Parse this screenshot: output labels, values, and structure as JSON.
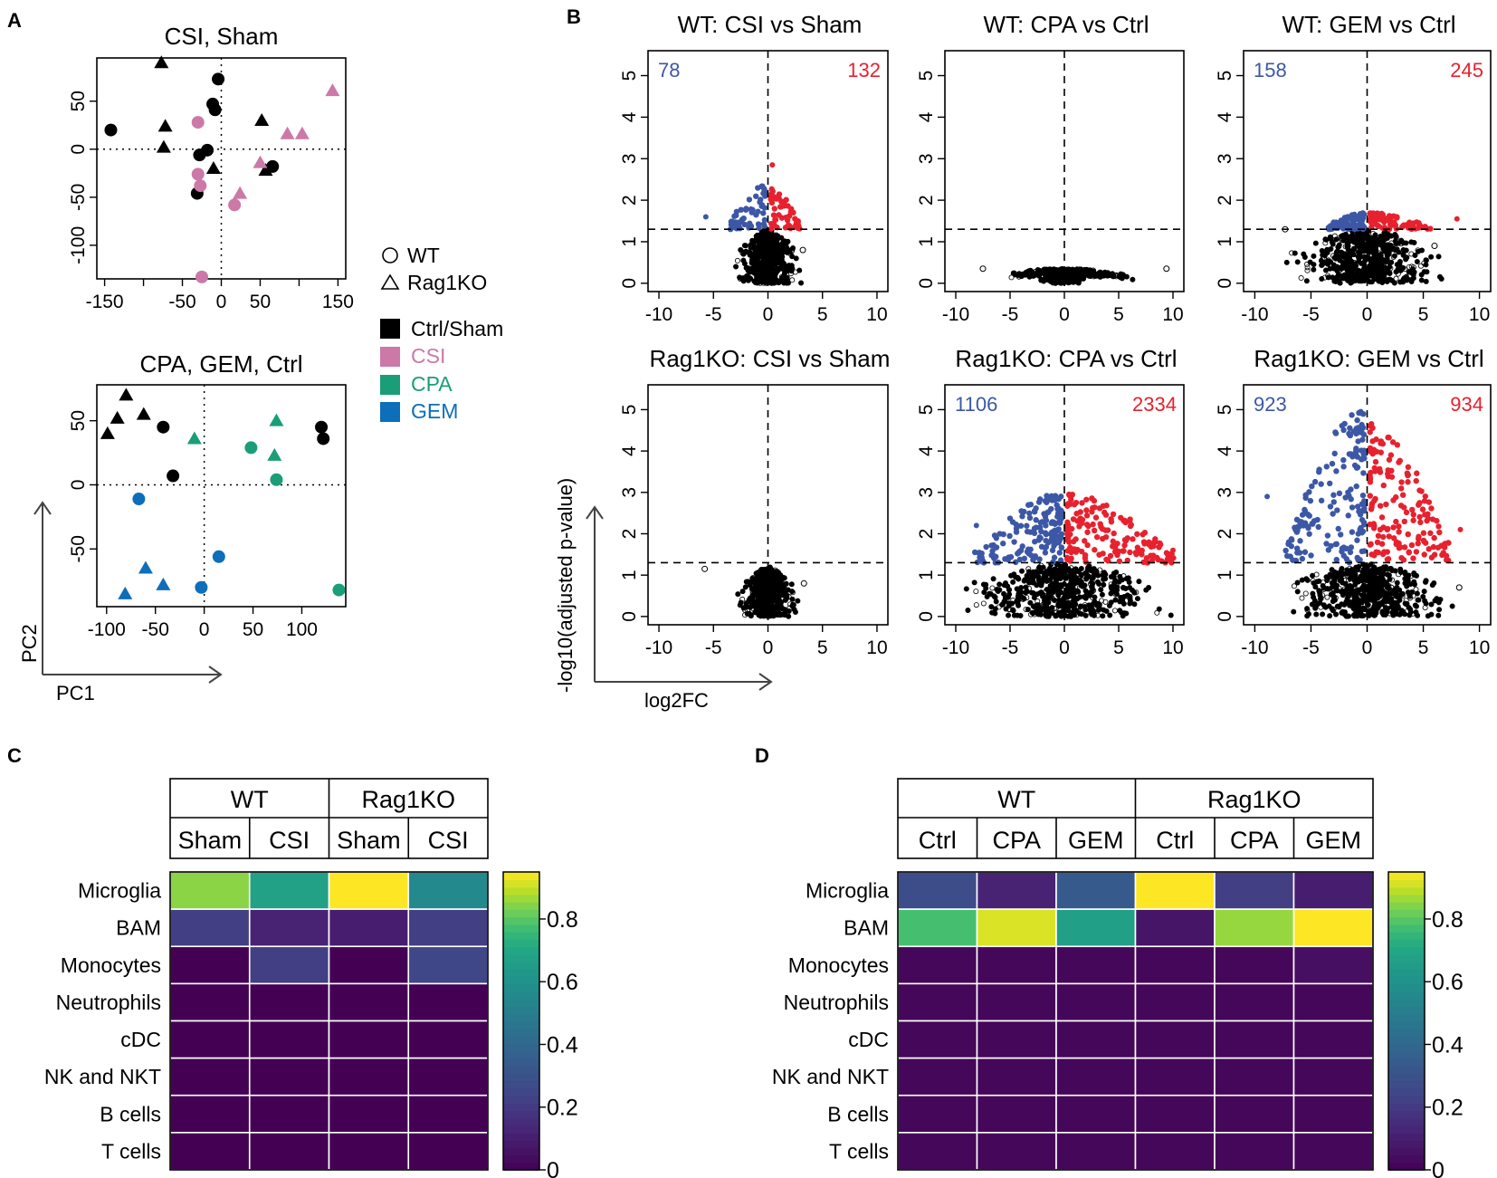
{
  "panel_labels": [
    "A",
    "B",
    "C",
    "D"
  ],
  "colors": {
    "ctrl": "#000000",
    "csi": "#cc79a7",
    "cpa": "#1a9e77",
    "gem": "#0d6eba",
    "up": "#e7212e",
    "down": "#3c57a6",
    "ns": "#000000",
    "count_down": "#3c57a6",
    "count_up": "#e7212e"
  },
  "pca_legend": {
    "shapes": [
      {
        "label": "WT",
        "shape": "circle"
      },
      {
        "label": "Rag1KO",
        "shape": "triangle"
      }
    ],
    "groups": [
      {
        "label": "Ctrl/Sham",
        "color": "#000000"
      },
      {
        "label": "CSI",
        "color": "#cc79a7"
      },
      {
        "label": "CPA",
        "color": "#1a9e77"
      },
      {
        "label": "GEM",
        "color": "#0d6eba"
      }
    ]
  },
  "pca_axes": {
    "x": "PC1",
    "y": "PC2"
  },
  "volcano_axes": {
    "x": "log2FC",
    "y": "-log10(adjusted p-value)"
  },
  "chart_data": [
    {
      "type": "scatter",
      "id": "pca_csi",
      "title": "CSI, Sham",
      "xlim": [
        -160,
        160
      ],
      "ylim": [
        -135,
        95
      ],
      "xticks": [
        -150,
        -100,
        -50,
        0,
        50,
        100,
        150
      ],
      "xtick_labels": [
        "-150",
        "",
        "-50",
        "0",
        "50",
        "",
        "150"
      ],
      "yticks": [
        -100,
        -50,
        0,
        50
      ],
      "reference_lines": {
        "x": 0,
        "y": 0
      },
      "points": [
        {
          "x": -142,
          "y": 20,
          "g": "ctrl",
          "s": "circle"
        },
        {
          "x": -77,
          "y": 90,
          "g": "ctrl",
          "s": "triangle"
        },
        {
          "x": -72,
          "y": 24,
          "g": "ctrl",
          "s": "triangle"
        },
        {
          "x": -74,
          "y": 2,
          "g": "ctrl",
          "s": "triangle"
        },
        {
          "x": -11,
          "y": 47,
          "g": "ctrl",
          "s": "circle"
        },
        {
          "x": -8,
          "y": 41,
          "g": "ctrl",
          "s": "circle"
        },
        {
          "x": -4,
          "y": 73,
          "g": "ctrl",
          "s": "circle"
        },
        {
          "x": -28,
          "y": -6,
          "g": "ctrl",
          "s": "circle"
        },
        {
          "x": -18,
          "y": -1,
          "g": "ctrl",
          "s": "circle"
        },
        {
          "x": -10,
          "y": -20,
          "g": "ctrl",
          "s": "triangle"
        },
        {
          "x": -31,
          "y": -46,
          "g": "ctrl",
          "s": "circle"
        },
        {
          "x": 52,
          "y": 30,
          "g": "ctrl",
          "s": "triangle"
        },
        {
          "x": 57,
          "y": -22,
          "g": "ctrl",
          "s": "triangle"
        },
        {
          "x": 66,
          "y": -18,
          "g": "ctrl",
          "s": "circle"
        },
        {
          "x": -30,
          "y": 28,
          "g": "csi",
          "s": "circle"
        },
        {
          "x": -30,
          "y": -26,
          "g": "csi",
          "s": "circle"
        },
        {
          "x": -27,
          "y": -38,
          "g": "csi",
          "s": "circle"
        },
        {
          "x": -25,
          "y": -133,
          "g": "csi",
          "s": "circle"
        },
        {
          "x": 17,
          "y": -58,
          "g": "csi",
          "s": "circle"
        },
        {
          "x": 24,
          "y": -46,
          "g": "csi",
          "s": "triangle"
        },
        {
          "x": 50,
          "y": -14,
          "g": "csi",
          "s": "triangle"
        },
        {
          "x": 85,
          "y": 16,
          "g": "csi",
          "s": "triangle"
        },
        {
          "x": 104,
          "y": 16,
          "g": "csi",
          "s": "triangle"
        },
        {
          "x": 143,
          "y": 61,
          "g": "csi",
          "s": "triangle"
        }
      ]
    },
    {
      "type": "scatter",
      "id": "pca_drug",
      "title": "CPA, GEM, Ctrl",
      "xlim": [
        -110,
        145
      ],
      "ylim": [
        -95,
        78
      ],
      "xticks": [
        -100,
        -50,
        0,
        50,
        100
      ],
      "xtick_labels": [
        "-100",
        "-50",
        "0",
        "50",
        "100"
      ],
      "yticks": [
        -50,
        0,
        50
      ],
      "reference_lines": {
        "x": 0,
        "y": 0
      },
      "points": [
        {
          "x": -99,
          "y": 40,
          "g": "ctrl",
          "s": "triangle"
        },
        {
          "x": -89,
          "y": 52,
          "g": "ctrl",
          "s": "triangle"
        },
        {
          "x": -80,
          "y": 70,
          "g": "ctrl",
          "s": "triangle"
        },
        {
          "x": -62,
          "y": 55,
          "g": "ctrl",
          "s": "triangle"
        },
        {
          "x": -42,
          "y": 45,
          "g": "ctrl",
          "s": "circle"
        },
        {
          "x": -32,
          "y": 7,
          "g": "ctrl",
          "s": "circle"
        },
        {
          "x": 120,
          "y": 45,
          "g": "ctrl",
          "s": "circle"
        },
        {
          "x": 122,
          "y": 36,
          "g": "ctrl",
          "s": "circle"
        },
        {
          "x": -10,
          "y": 36,
          "g": "cpa",
          "s": "triangle"
        },
        {
          "x": 48,
          "y": 29,
          "g": "cpa",
          "s": "circle"
        },
        {
          "x": 74,
          "y": 50,
          "g": "cpa",
          "s": "triangle"
        },
        {
          "x": 72,
          "y": 23,
          "g": "cpa",
          "s": "triangle"
        },
        {
          "x": 74,
          "y": 4,
          "g": "cpa",
          "s": "circle"
        },
        {
          "x": 138,
          "y": -82,
          "g": "cpa",
          "s": "circle"
        },
        {
          "x": -67,
          "y": -11,
          "g": "gem",
          "s": "circle"
        },
        {
          "x": -60,
          "y": -65,
          "g": "gem",
          "s": "triangle"
        },
        {
          "x": -81,
          "y": -85,
          "g": "gem",
          "s": "triangle"
        },
        {
          "x": -42,
          "y": -78,
          "g": "gem",
          "s": "triangle"
        },
        {
          "x": -3,
          "y": -80,
          "g": "gem",
          "s": "circle"
        },
        {
          "x": 15,
          "y": -56,
          "g": "gem",
          "s": "circle"
        }
      ]
    },
    {
      "type": "volcano",
      "id": "v_wt_csi",
      "title": "WT: CSI vs Sham",
      "n_down": "78",
      "n_up": "132",
      "xlim": [
        -11,
        11
      ],
      "ylim": [
        -0.2,
        5.6
      ],
      "xticks": [
        -10,
        -5,
        0,
        5,
        10
      ],
      "yticks": [
        0,
        1,
        2,
        3,
        4,
        5
      ],
      "threshold": 1.3,
      "sig_max": 2.3,
      "sig_max_up": 2.3,
      "sig_max_down": 2.4,
      "sig_width_up": 2.7,
      "sig_width_down": 3.3,
      "ns_width": 3.3,
      "ns_max": 1.3,
      "outliers": [
        [
          0.4,
          2.85
        ],
        [
          -5.7,
          1.6
        ],
        [
          3.2,
          0.8
        ]
      ]
    },
    {
      "type": "volcano",
      "id": "v_wt_cpa",
      "title": "WT: CPA vs Ctrl",
      "n_down": "",
      "n_up": "",
      "xlim": [
        -11,
        11
      ],
      "ylim": [
        -0.2,
        5.6
      ],
      "xticks": [
        -10,
        -5,
        0,
        5,
        10
      ],
      "yticks": [
        0,
        1,
        2,
        3,
        4,
        5
      ],
      "threshold": 1.3,
      "sig_max": 0,
      "ns_width": 7.5,
      "ns_max": 0.35,
      "flat": true,
      "outliers": [
        [
          9.4,
          0.35
        ],
        [
          -7.5,
          0.35
        ]
      ]
    },
    {
      "type": "volcano",
      "id": "v_wt_gem",
      "title": "WT: GEM vs Ctrl",
      "n_down": "158",
      "n_up": "245",
      "xlim": [
        -11,
        11
      ],
      "ylim": [
        -0.2,
        5.6
      ],
      "xticks": [
        -10,
        -5,
        0,
        5,
        10
      ],
      "yticks": [
        0,
        1,
        2,
        3,
        4,
        5
      ],
      "threshold": 1.3,
      "sig_max": 1.7,
      "sig_max_up": 1.7,
      "sig_max_down": 1.7,
      "sig_width_up": 5.5,
      "sig_width_down": 3.5,
      "ns_width": 8,
      "ns_max": 1.3,
      "outliers": [
        [
          8.0,
          1.55
        ],
        [
          -7.3,
          1.3
        ],
        [
          6.0,
          0.9
        ]
      ]
    },
    {
      "type": "volcano",
      "id": "v_ko_csi",
      "title": "Rag1KO: CSI vs Sham",
      "n_down": "",
      "n_up": "",
      "xlim": [
        -11,
        11
      ],
      "ylim": [
        -0.2,
        5.6
      ],
      "xticks": [
        -10,
        -5,
        0,
        5,
        10
      ],
      "yticks": [
        0,
        1,
        2,
        3,
        4,
        5
      ],
      "threshold": 1.3,
      "sig_max": 0,
      "ns_width": 3,
      "ns_max": 1.2,
      "outliers": [
        [
          -5.8,
          1.15
        ],
        [
          3.3,
          0.8
        ]
      ]
    },
    {
      "type": "volcano",
      "id": "v_ko_cpa",
      "title": "Rag1KO: CPA vs Ctrl",
      "n_down": "1106",
      "n_up": "2334",
      "xlim": [
        -11,
        11
      ],
      "ylim": [
        -0.2,
        5.6
      ],
      "xticks": [
        -10,
        -5,
        0,
        5,
        10
      ],
      "yticks": [
        0,
        1,
        2,
        3,
        4,
        5
      ],
      "threshold": 1.3,
      "sig_max": 3.0,
      "sig_max_up": 3.0,
      "sig_max_down": 3.0,
      "sig_width_up": 10,
      "sig_width_down": 8,
      "ns_width": 11,
      "ns_max": 1.3,
      "outliers": [
        [
          -8.1,
          2.2
        ],
        [
          10.0,
          1.6
        ]
      ]
    },
    {
      "type": "volcano",
      "id": "v_ko_gem",
      "title": "Rag1KO: GEM vs Ctrl",
      "n_down": "923",
      "n_up": "934",
      "xlim": [
        -11,
        11
      ],
      "ylim": [
        -0.2,
        5.6
      ],
      "xticks": [
        -10,
        -5,
        0,
        5,
        10
      ],
      "yticks": [
        0,
        1,
        2,
        3,
        4,
        5
      ],
      "threshold": 1.3,
      "sig_max": 4.7,
      "sig_max_up": 4.7,
      "sig_max_down": 5.0,
      "sig_width_up": 7,
      "sig_width_down": 7,
      "ns_width": 8.5,
      "ns_max": 1.3,
      "outliers": [
        [
          -8.9,
          2.9
        ],
        [
          8.3,
          2.1
        ],
        [
          8.2,
          0.7
        ]
      ]
    },
    {
      "type": "heatmap",
      "id": "hm_csi",
      "top_headers": [
        "WT",
        "Rag1KO"
      ],
      "columns": [
        "Sham",
        "CSI",
        "Sham",
        "CSI"
      ],
      "rows": [
        "Microglia",
        "BAM",
        "Monocytes",
        "Neutrophils",
        "cDC",
        "NK and NKT",
        "B cells",
        "T cells"
      ],
      "values": [
        [
          0.85,
          0.68,
          0.95,
          0.56
        ],
        [
          0.22,
          0.12,
          0.1,
          0.22
        ],
        [
          0.0,
          0.22,
          0.0,
          0.25
        ],
        [
          0.0,
          0.0,
          0.0,
          0.0
        ],
        [
          0.0,
          0.0,
          0.0,
          0.0
        ],
        [
          0.0,
          0.0,
          0.0,
          0.0
        ],
        [
          0.0,
          0.0,
          0.0,
          0.0
        ],
        [
          0.0,
          0.0,
          0.0,
          0.0
        ]
      ],
      "scale": [
        0,
        0.95
      ],
      "colorbar_ticks": [
        0,
        0.2,
        0.4,
        0.6,
        0.8
      ],
      "colorbar_labels": [
        "0",
        "0.2",
        "0.4",
        "0.6",
        "0.8"
      ]
    },
    {
      "type": "heatmap",
      "id": "hm_drug",
      "top_headers": [
        "WT",
        "Rag1KO"
      ],
      "columns": [
        "Ctrl",
        "CPA",
        "GEM",
        "Ctrl",
        "CPA",
        "GEM"
      ],
      "rows": [
        "Microglia",
        "BAM",
        "Monocytes",
        "Neutrophils",
        "cDC",
        "NK and NKT",
        "B cells",
        "T cells"
      ],
      "values": [
        [
          0.28,
          0.12,
          0.34,
          0.97,
          0.22,
          0.1
        ],
        [
          0.78,
          0.92,
          0.67,
          0.07,
          0.86,
          0.95
        ],
        [
          0.02,
          0.02,
          0.02,
          0.02,
          0.02,
          0.05
        ],
        [
          0.02,
          0.02,
          0.02,
          0.02,
          0.02,
          0.02
        ],
        [
          0.02,
          0.02,
          0.02,
          0.02,
          0.02,
          0.02
        ],
        [
          0.02,
          0.02,
          0.02,
          0.02,
          0.02,
          0.02
        ],
        [
          0.02,
          0.02,
          0.02,
          0.02,
          0.02,
          0.02
        ],
        [
          0.02,
          0.02,
          0.02,
          0.02,
          0.02,
          0.02
        ]
      ],
      "scale": [
        0,
        0.95
      ],
      "colorbar_ticks": [
        0,
        0.2,
        0.4,
        0.6,
        0.8
      ],
      "colorbar_labels": [
        "0",
        "0.2",
        "0.4",
        "0.6",
        "0.8"
      ]
    }
  ]
}
